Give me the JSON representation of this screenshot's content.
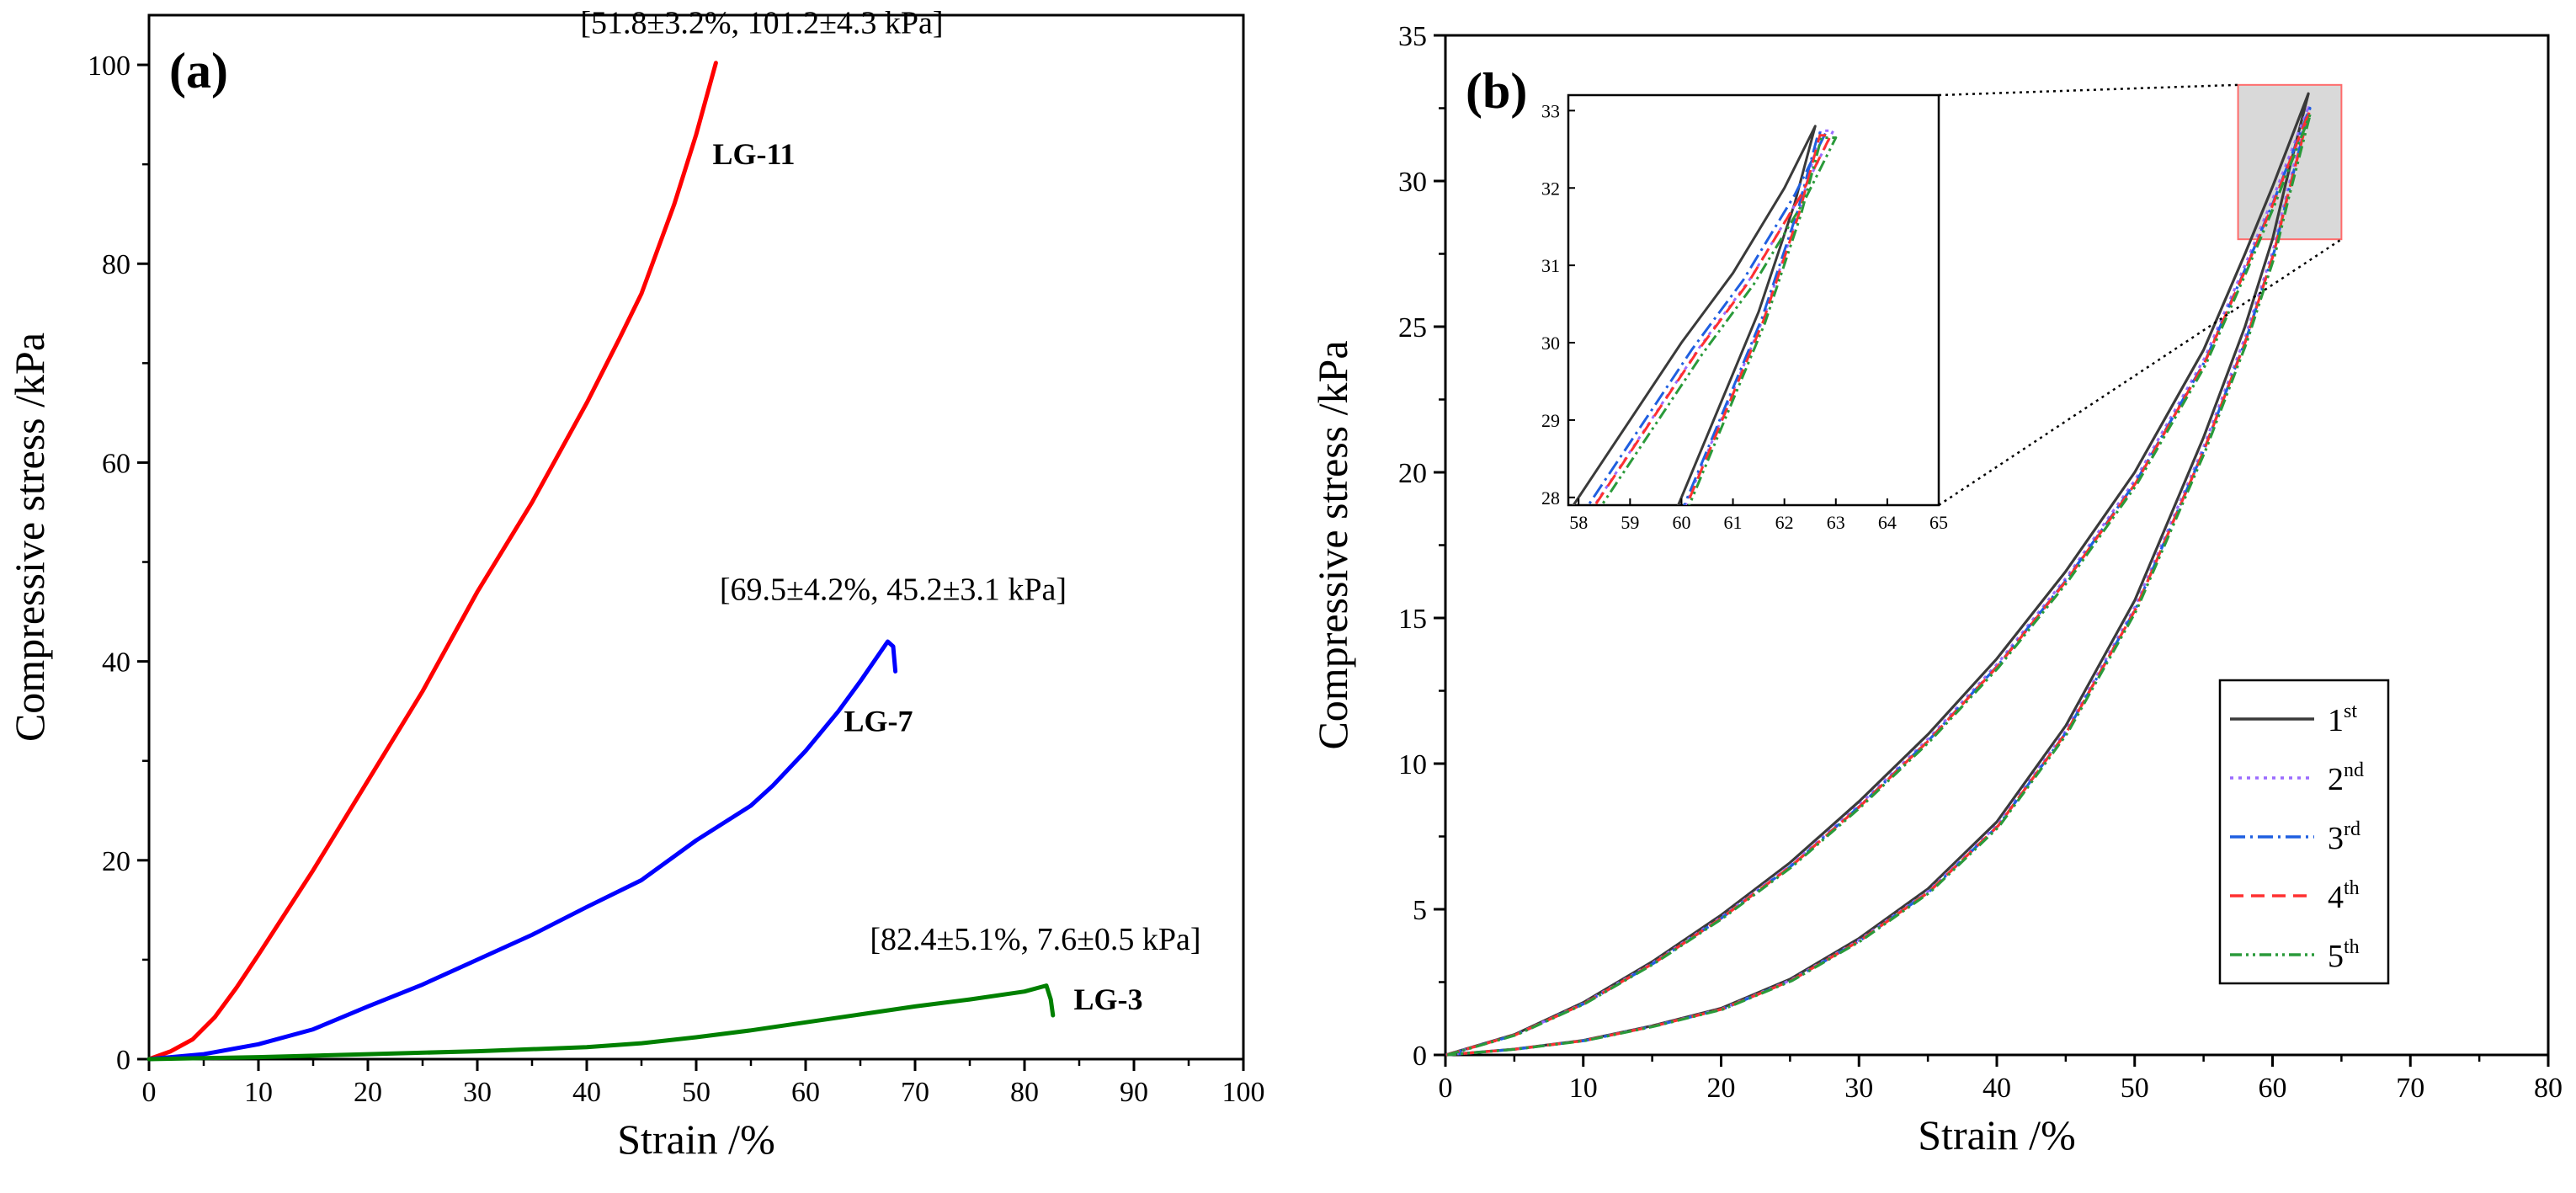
{
  "chart_data": [
    {
      "type": "line",
      "panel_label": "(a)",
      "xlabel": "Strain /%",
      "ylabel": "Compressive stress /kPa",
      "xlim": [
        0,
        100
      ],
      "ylim": [
        0,
        105
      ],
      "xticks": [
        0,
        10,
        20,
        30,
        40,
        50,
        60,
        70,
        80,
        90,
        100
      ],
      "yticks": [
        0,
        20,
        40,
        60,
        80,
        100
      ],
      "grid": false,
      "series": [
        {
          "name": "LG-11",
          "color": "#ff0000",
          "x": [
            0,
            2,
            4,
            6,
            8,
            10,
            15,
            20,
            25,
            30,
            35,
            40,
            43,
            45,
            48,
            50,
            51.8
          ],
          "y": [
            0,
            0.8,
            2,
            4.2,
            7.2,
            10.5,
            19,
            28,
            37,
            47,
            56,
            66,
            72.5,
            77,
            86,
            93,
            100.2
          ]
        },
        {
          "name": "LG-7",
          "color": "#0000ff",
          "x": [
            0,
            5,
            10,
            15,
            20,
            25,
            30,
            35,
            40,
            45,
            50,
            55,
            57,
            60,
            63,
            65,
            67.5,
            68,
            68.2
          ],
          "y": [
            0,
            0.5,
            1.5,
            3,
            5.3,
            7.5,
            10,
            12.5,
            15.3,
            18,
            22,
            25.5,
            27.5,
            31,
            35,
            38,
            42,
            41.5,
            39
          ]
        },
        {
          "name": "LG-3",
          "color": "#008000",
          "x": [
            0,
            10,
            20,
            30,
            40,
            45,
            50,
            55,
            60,
            65,
            70,
            75,
            80,
            82,
            82.4,
            82.6
          ],
          "y": [
            0,
            0.2,
            0.5,
            0.8,
            1.2,
            1.6,
            2.2,
            2.9,
            3.7,
            4.5,
            5.3,
            6.0,
            6.8,
            7.4,
            6.0,
            4.4
          ]
        }
      ],
      "annotations": [
        {
          "text": "[51.8±3.2%, 101.2±4.3 kPa]",
          "x": 56,
          "y": 103.2,
          "anchor": "middle"
        },
        {
          "text": "[69.5±4.2%, 45.2±3.1 kPa]",
          "x": 68,
          "y": 46.2,
          "anchor": "middle"
        },
        {
          "text": "[82.4±5.1%, 7.6±0.5 kPa]",
          "x": 81,
          "y": 11,
          "anchor": "middle"
        },
        {
          "text": "LG-11",
          "x": 51.5,
          "y": 90,
          "anchor": "start"
        },
        {
          "text": "LG-7",
          "x": 63.5,
          "y": 33,
          "anchor": "start"
        },
        {
          "text": "LG-3",
          "x": 84.5,
          "y": 5,
          "anchor": "start"
        }
      ]
    },
    {
      "type": "line",
      "panel_label": "(b)",
      "xlabel": "Strain /%",
      "ylabel": "Compressive stress /kPa",
      "xlim": [
        0,
        80
      ],
      "ylim": [
        0,
        35
      ],
      "xticks": [
        0,
        10,
        20,
        30,
        40,
        50,
        60,
        70,
        80
      ],
      "yticks": [
        0,
        5,
        10,
        15,
        20,
        25,
        30,
        35
      ],
      "grid": false,
      "legend_position": "lower-right",
      "loading_x": [
        0,
        5,
        10,
        15,
        20,
        25,
        30,
        35,
        40,
        45,
        50,
        55,
        58,
        60,
        62.6
      ],
      "loading_y": [
        0,
        0.7,
        1.8,
        3.2,
        4.8,
        6.6,
        8.7,
        11.0,
        13.6,
        16.6,
        20.0,
        24.2,
        27.5,
        29.8,
        33.0
      ],
      "unloading_x": [
        62.6,
        61,
        60,
        58,
        55,
        50,
        45,
        40,
        35,
        30,
        25,
        20,
        15,
        10,
        5,
        0
      ],
      "unloading_y": [
        33.0,
        30.0,
        28.0,
        25.0,
        21.2,
        15.6,
        11.3,
        8.0,
        5.7,
        4.0,
        2.6,
        1.6,
        1.0,
        0.5,
        0.2,
        0
      ],
      "series": [
        {
          "name": "1",
          "superscript": "st",
          "color": "#3a3a3a",
          "dash": "",
          "peak": 33.0
        },
        {
          "name": "2",
          "superscript": "nd",
          "color": "#9b6bff",
          "dash": "4 6",
          "peak": 32.6
        },
        {
          "name": "3",
          "superscript": "rd",
          "color": "#1f5fe0",
          "dash": "18 6 3 6",
          "peak": 32.5
        },
        {
          "name": "4",
          "superscript": "th",
          "color": "#ff3030",
          "dash": "16 9",
          "peak": 32.4
        },
        {
          "name": "5",
          "superscript": "th",
          "color": "#2a9a3a",
          "dash": "14 5 3 5 3 5",
          "peak": 32.3
        }
      ],
      "zoom_box": {
        "xlim": [
          57.5,
          65
        ],
        "ylim": [
          28,
          33.3
        ]
      },
      "inset": {
        "xlim": [
          57.8,
          65
        ],
        "ylim": [
          27.9,
          33.2
        ],
        "xticks": [
          58,
          59,
          60,
          61,
          62,
          63,
          64,
          65
        ],
        "yticks": [
          28,
          29,
          30,
          31,
          32,
          33
        ]
      }
    }
  ]
}
